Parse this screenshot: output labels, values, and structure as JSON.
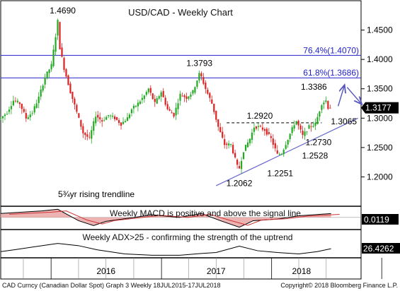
{
  "chart_data": {
    "type": "candlestick",
    "title": "USD/CAD - Weekly Chart",
    "y_axis": {
      "min": 1.15,
      "max": 1.5,
      "ticks": [
        "1.4500",
        "1.4000",
        "1.3500",
        "1.3000",
        "1.2500",
        "1.2000"
      ],
      "tick_values": [
        1.45,
        1.4,
        1.35,
        1.3,
        1.25,
        1.2
      ]
    },
    "x_axis": {
      "labels": [
        "2016",
        "2017",
        "2018"
      ],
      "start": "2015-07-18",
      "end": "2018-07-17"
    },
    "last_price": {
      "label": "1.3177",
      "value": 1.3177,
      "color": "#000000"
    },
    "colors": {
      "up": "#22aa22",
      "down": "#dd2222",
      "fib": "#2222cc",
      "trend": "#6666cc",
      "arrow": "#5555bb",
      "macd_fill": "#e8a0a0"
    },
    "price_path": [
      [
        "2015-07-18",
        1.3
      ],
      [
        "2015-08-08",
        1.31
      ],
      [
        "2015-08-29",
        1.33
      ],
      [
        "2015-09-19",
        1.325
      ],
      [
        "2015-10-10",
        1.3
      ],
      [
        "2015-10-31",
        1.31
      ],
      [
        "2015-11-21",
        1.335
      ],
      [
        "2015-12-12",
        1.37
      ],
      [
        "2016-01-02",
        1.39
      ],
      [
        "2016-01-16",
        1.44
      ],
      [
        "2016-01-23",
        1.465
      ],
      [
        "2016-01-30",
        1.42
      ],
      [
        "2016-02-13",
        1.385
      ],
      [
        "2016-03-05",
        1.345
      ],
      [
        "2016-03-26",
        1.31
      ],
      [
        "2016-04-16",
        1.275
      ],
      [
        "2016-05-07",
        1.265
      ],
      [
        "2016-05-28",
        1.305
      ],
      [
        "2016-06-18",
        1.295
      ],
      [
        "2016-07-09",
        1.305
      ],
      [
        "2016-07-30",
        1.3
      ],
      [
        "2016-08-20",
        1.29
      ],
      [
        "2016-09-10",
        1.3
      ],
      [
        "2016-09-24",
        1.315
      ],
      [
        "2016-10-15",
        1.325
      ],
      [
        "2016-11-05",
        1.338
      ],
      [
        "2016-11-19",
        1.35
      ],
      [
        "2016-12-10",
        1.325
      ],
      [
        "2016-12-31",
        1.345
      ],
      [
        "2017-01-21",
        1.315
      ],
      [
        "2017-02-11",
        1.305
      ],
      [
        "2017-03-04",
        1.34
      ],
      [
        "2017-03-25",
        1.335
      ],
      [
        "2017-04-15",
        1.345
      ],
      [
        "2017-05-06",
        1.375
      ],
      [
        "2017-05-13",
        1.37
      ],
      [
        "2017-05-27",
        1.35
      ],
      [
        "2017-06-17",
        1.325
      ],
      [
        "2017-07-08",
        1.285
      ],
      [
        "2017-07-29",
        1.255
      ],
      [
        "2017-08-19",
        1.255
      ],
      [
        "2017-09-09",
        1.218
      ],
      [
        "2017-09-16",
        1.215
      ],
      [
        "2017-09-30",
        1.245
      ],
      [
        "2017-10-21",
        1.265
      ],
      [
        "2017-11-04",
        1.285
      ],
      [
        "2017-11-18",
        1.285
      ],
      [
        "2017-12-09",
        1.28
      ],
      [
        "2017-12-30",
        1.265
      ],
      [
        "2018-01-20",
        1.238
      ],
      [
        "2018-02-03",
        1.24
      ],
      [
        "2018-02-24",
        1.265
      ],
      [
        "2018-03-17",
        1.29
      ],
      [
        "2018-03-24",
        1.295
      ],
      [
        "2018-04-14",
        1.27
      ],
      [
        "2018-05-05",
        1.285
      ],
      [
        "2018-05-26",
        1.29
      ],
      [
        "2018-06-16",
        1.325
      ],
      [
        "2018-06-30",
        1.33
      ],
      [
        "2018-07-07",
        1.318
      ],
      [
        "2018-07-17",
        1.3177
      ]
    ],
    "annotations": [
      {
        "text": "1.4690",
        "date": "2016-01-20",
        "y": 1.469
      },
      {
        "text": "1.3793",
        "date": "2017-05-06",
        "y": 1.3793
      },
      {
        "text": "1.2920",
        "date": "2017-11-18",
        "y": 1.292
      },
      {
        "text": "1.3386",
        "date": "2018-06-23",
        "y": 1.3386
      },
      {
        "text": "1.3065",
        "date": "2018-07-07",
        "y": 1.3065
      },
      {
        "text": "1.2730",
        "date": "2018-04-14",
        "y": 1.273
      },
      {
        "text": "1.2528",
        "date": "2018-03-24",
        "y": 1.2528
      },
      {
        "text": "1.2251",
        "date": "2018-01-20",
        "y": 1.2251
      },
      {
        "text": "1.2062",
        "date": "2017-09-16",
        "y": 1.2062
      },
      {
        "text": "5¾yr rising trendline"
      }
    ],
    "fib_levels": [
      {
        "label": "76.4%(1.4070)",
        "value": 1.407
      },
      {
        "label": "61.8%(1.3686)",
        "value": 1.3686
      }
    ],
    "resistance": {
      "value": 1.292,
      "from": "2017-08-05",
      "to": "2018-06-16"
    },
    "trendline": {
      "from_date": "2017-07-01",
      "from_y": 1.185,
      "to_date": "2018-07-17",
      "to_y": 1.28
    },
    "projection": [
      [
        "2018-07-17",
        1.33
      ],
      [
        "2018-08-11",
        1.355
      ],
      [
        "2018-09-08",
        1.32
      ]
    ],
    "macd": {
      "title": "Weekly MACD is positive and above the signal line",
      "value": "0.0119",
      "path": [
        [
          "2015-07-18",
          0.012
        ],
        [
          "2015-12-01",
          0.02
        ],
        [
          "2016-01-23",
          0.025
        ],
        [
          "2016-04-01",
          -0.01
        ],
        [
          "2016-05-21",
          -0.025
        ],
        [
          "2016-07-01",
          -0.012
        ],
        [
          "2016-10-01",
          0.0
        ],
        [
          "2016-12-01",
          0.008
        ],
        [
          "2017-03-01",
          0.0
        ],
        [
          "2017-05-13",
          0.012
        ],
        [
          "2017-07-15",
          -0.01
        ],
        [
          "2017-09-16",
          -0.03
        ],
        [
          "2017-11-01",
          -0.01
        ],
        [
          "2018-01-20",
          -0.005
        ],
        [
          "2018-04-01",
          0.005
        ],
        [
          "2018-07-17",
          0.0119
        ]
      ]
    },
    "adx": {
      "title": "Weekly ADX>25 - confirming the strength of the uptrend",
      "value": "26.4262",
      "path": [
        [
          "2015-07-18",
          20
        ],
        [
          "2015-09-01",
          24
        ],
        [
          "2015-11-01",
          30
        ],
        [
          "2016-01-23",
          38
        ],
        [
          "2016-04-01",
          33
        ],
        [
          "2016-06-01",
          24
        ],
        [
          "2016-09-01",
          15
        ],
        [
          "2016-12-01",
          12
        ],
        [
          "2017-03-01",
          12
        ],
        [
          "2017-05-13",
          16
        ],
        [
          "2017-07-01",
          18
        ],
        [
          "2017-09-16",
          32
        ],
        [
          "2017-11-15",
          22
        ],
        [
          "2018-01-20",
          18
        ],
        [
          "2018-04-01",
          15
        ],
        [
          "2018-06-01",
          20
        ],
        [
          "2018-07-17",
          26.4
        ]
      ]
    }
  },
  "footer": {
    "left": "CAD Curncy (Canadian Dollar Spot) Graph 3  Weekly 18JUL2015-17JUL2018",
    "right": "Copyright© 2018 Bloomberg Finance L.P."
  }
}
